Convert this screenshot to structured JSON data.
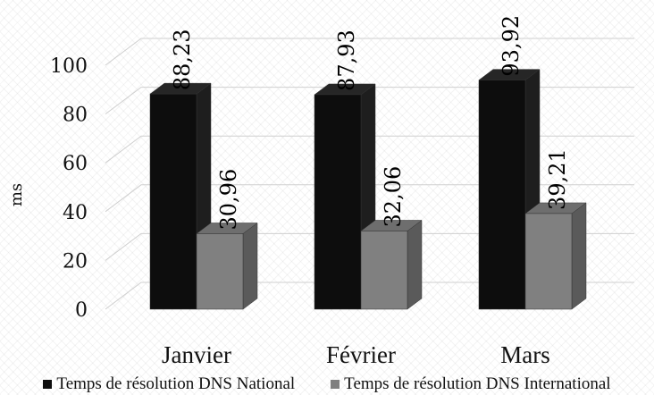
{
  "chart_data": {
    "type": "bar",
    "3d": true,
    "categories": [
      "Janvier",
      "Février",
      "Mars"
    ],
    "series": [
      {
        "name": "Temps de résolution DNS National",
        "values": [
          88.23,
          87.93,
          93.92
        ],
        "labels": [
          "88,23",
          "87,93",
          "93,92"
        ],
        "color": "#0d0d0d"
      },
      {
        "name": "Temps de résolution DNS International",
        "values": [
          30.96,
          32.06,
          39.21
        ],
        "labels": [
          "30,96",
          "32,06",
          "39,21"
        ],
        "color": "#808080"
      }
    ],
    "ylabel": "ms",
    "ylim": [
      0,
      100
    ],
    "yticks": [
      "0",
      "20",
      "40",
      "60",
      "80",
      "100"
    ],
    "ytick_values": [
      0,
      20,
      40,
      60,
      80,
      100
    ],
    "grid": true,
    "legend_position": "bottom"
  }
}
